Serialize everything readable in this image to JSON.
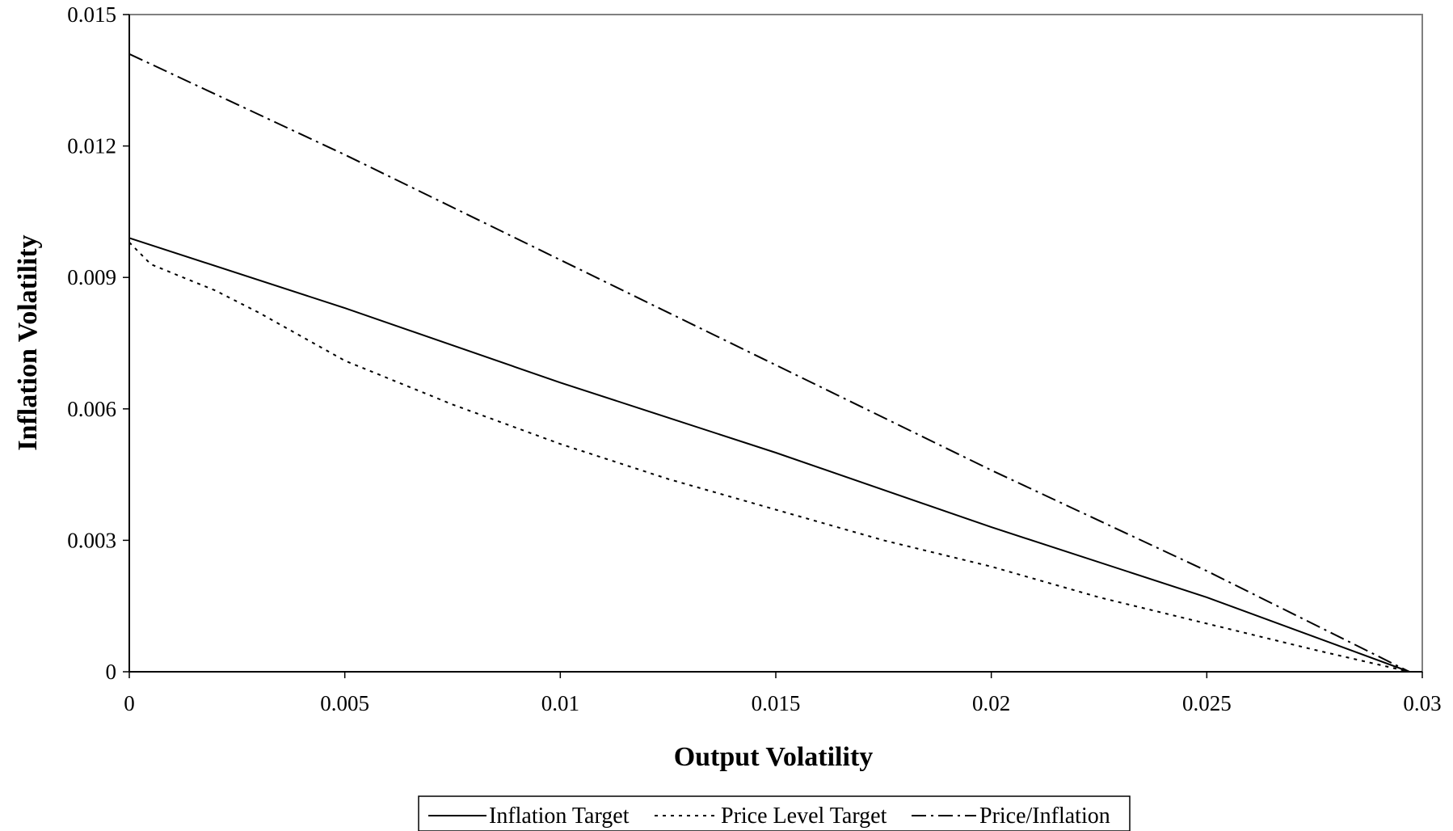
{
  "chart_data": {
    "type": "line",
    "title": "",
    "xlabel": "Output Volatility",
    "ylabel": "Inflation Volatility",
    "xlim": [
      0,
      0.03
    ],
    "ylim": [
      0,
      0.015
    ],
    "x_ticks": [
      "0",
      "0.005",
      "0.01",
      "0.015",
      "0.02",
      "0.025",
      "0.03"
    ],
    "y_ticks": [
      "0",
      "0.003",
      "0.006",
      "0.009",
      "0.012",
      "0.015"
    ],
    "grid": false,
    "legend_position": "bottom",
    "series": [
      {
        "name": "Inflation Target",
        "line_style": "solid",
        "x": [
          0,
          0.005,
          0.01,
          0.015,
          0.02,
          0.025,
          0.0297
        ],
        "y": [
          0.0099,
          0.0083,
          0.0066,
          0.005,
          0.0033,
          0.0017,
          0
        ]
      },
      {
        "name": "Price Level Target",
        "line_style": "dotted",
        "x": [
          0,
          0.0005,
          0.001,
          0.002,
          0.003,
          0.005,
          0.0075,
          0.01,
          0.0125,
          0.015,
          0.0175,
          0.02,
          0.0225,
          0.025,
          0.0275,
          0.0297
        ],
        "y": [
          0.0098,
          0.0093,
          0.0091,
          0.0087,
          0.0082,
          0.0071,
          0.0061,
          0.0052,
          0.0044,
          0.0037,
          0.003,
          0.0024,
          0.0017,
          0.0011,
          0.0005,
          0
        ]
      },
      {
        "name": "Price/Inflation",
        "line_style": "dash-dot",
        "x": [
          0,
          0.005,
          0.01,
          0.015,
          0.02,
          0.025,
          0.0297
        ],
        "y": [
          0.0141,
          0.0118,
          0.0094,
          0.007,
          0.0046,
          0.0023,
          0
        ]
      }
    ]
  }
}
